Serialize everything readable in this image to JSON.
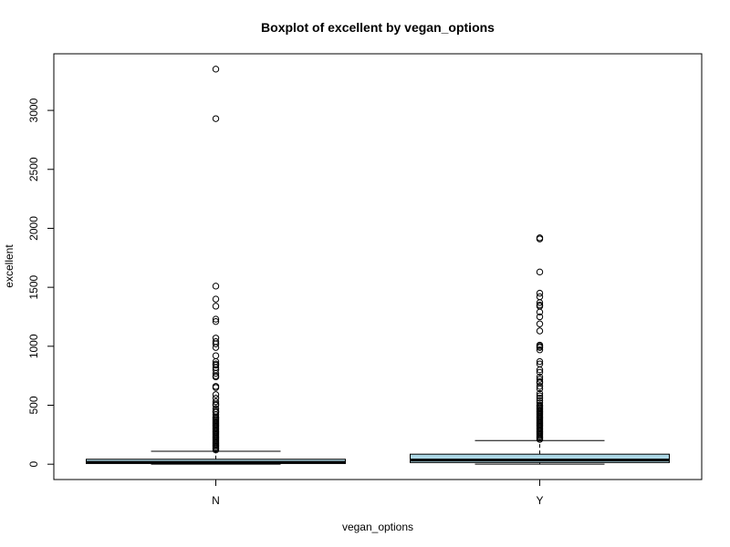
{
  "chart_data": {
    "type": "boxplot",
    "title": "Boxplot of excellent by vegan_options",
    "xlabel": "vegan_options",
    "ylabel": "excellent",
    "categories": [
      "N",
      "Y"
    ],
    "ylim": [
      -130,
      3480
    ],
    "yticks": [
      0,
      500,
      1000,
      1500,
      2000,
      2500,
      3000
    ],
    "box_fill": "#add8e6",
    "grid": false,
    "legend": "none",
    "boxes": [
      {
        "category": "N",
        "whisker_low": 0,
        "q1": 6,
        "median": 16,
        "q3": 42,
        "whisker_high": 110,
        "outliers": [
          3350,
          2930,
          1510,
          1400,
          1340,
          1230,
          1210,
          1070,
          1040,
          1020,
          990,
          920,
          870,
          850,
          840,
          820,
          800,
          770,
          750,
          740,
          660,
          650,
          590,
          560,
          530,
          510,
          500,
          470,
          450,
          440,
          420,
          400,
          390,
          380,
          370,
          360,
          350,
          340,
          330,
          320,
          310,
          300,
          290,
          280,
          270,
          260,
          250,
          240,
          230,
          220,
          210,
          200,
          190,
          180,
          170,
          160,
          150,
          140,
          130,
          120
        ]
      },
      {
        "category": "Y",
        "whisker_low": 0,
        "q1": 14,
        "median": 35,
        "q3": 85,
        "whisker_high": 200,
        "outliers": [
          1920,
          1910,
          1630,
          1450,
          1420,
          1370,
          1350,
          1340,
          1290,
          1250,
          1190,
          1130,
          1010,
          1000,
          990,
          970,
          870,
          850,
          800,
          780,
          740,
          720,
          700,
          690,
          660,
          640,
          600,
          580,
          560,
          540,
          520,
          500,
          490,
          480,
          470,
          460,
          450,
          440,
          430,
          420,
          410,
          400,
          390,
          380,
          370,
          360,
          350,
          340,
          330,
          320,
          310,
          300,
          290,
          280,
          270,
          260,
          250,
          240,
          230,
          220,
          210
        ]
      }
    ]
  }
}
